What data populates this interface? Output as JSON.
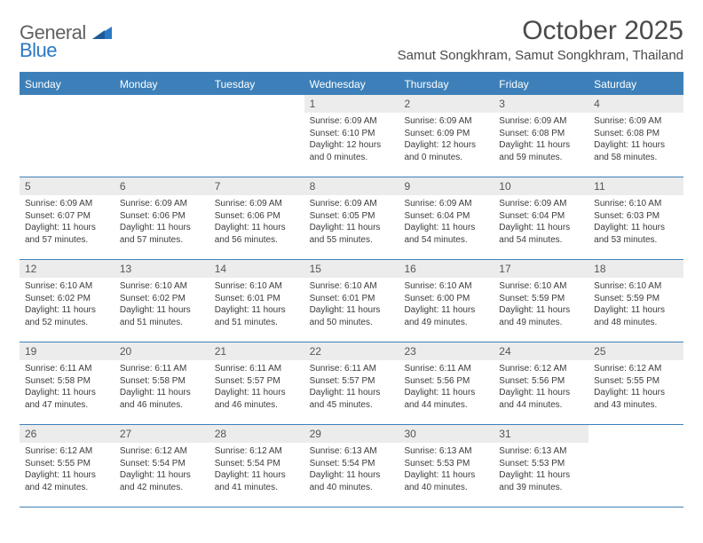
{
  "logo": {
    "word1": "General",
    "word2": "Blue"
  },
  "title": "October 2025",
  "location": "Samut Songkhram, Samut Songkhram, Thailand",
  "colors": {
    "header_bar": "#3d80b9",
    "daynum_bg": "#ececec",
    "logo_grey": "#616161",
    "logo_blue": "#2b78c5",
    "text": "#3b3b3b",
    "rule": "#3d80b9"
  },
  "weekdays": [
    "Sunday",
    "Monday",
    "Tuesday",
    "Wednesday",
    "Thursday",
    "Friday",
    "Saturday"
  ],
  "weeks": [
    [
      {
        "day": "",
        "sunrise": "",
        "sunset": "",
        "daylight1": "",
        "daylight2": ""
      },
      {
        "day": "",
        "sunrise": "",
        "sunset": "",
        "daylight1": "",
        "daylight2": ""
      },
      {
        "day": "",
        "sunrise": "",
        "sunset": "",
        "daylight1": "",
        "daylight2": ""
      },
      {
        "day": "1",
        "sunrise": "Sunrise: 6:09 AM",
        "sunset": "Sunset: 6:10 PM",
        "daylight1": "Daylight: 12 hours",
        "daylight2": "and 0 minutes."
      },
      {
        "day": "2",
        "sunrise": "Sunrise: 6:09 AM",
        "sunset": "Sunset: 6:09 PM",
        "daylight1": "Daylight: 12 hours",
        "daylight2": "and 0 minutes."
      },
      {
        "day": "3",
        "sunrise": "Sunrise: 6:09 AM",
        "sunset": "Sunset: 6:08 PM",
        "daylight1": "Daylight: 11 hours",
        "daylight2": "and 59 minutes."
      },
      {
        "day": "4",
        "sunrise": "Sunrise: 6:09 AM",
        "sunset": "Sunset: 6:08 PM",
        "daylight1": "Daylight: 11 hours",
        "daylight2": "and 58 minutes."
      }
    ],
    [
      {
        "day": "5",
        "sunrise": "Sunrise: 6:09 AM",
        "sunset": "Sunset: 6:07 PM",
        "daylight1": "Daylight: 11 hours",
        "daylight2": "and 57 minutes."
      },
      {
        "day": "6",
        "sunrise": "Sunrise: 6:09 AM",
        "sunset": "Sunset: 6:06 PM",
        "daylight1": "Daylight: 11 hours",
        "daylight2": "and 57 minutes."
      },
      {
        "day": "7",
        "sunrise": "Sunrise: 6:09 AM",
        "sunset": "Sunset: 6:06 PM",
        "daylight1": "Daylight: 11 hours",
        "daylight2": "and 56 minutes."
      },
      {
        "day": "8",
        "sunrise": "Sunrise: 6:09 AM",
        "sunset": "Sunset: 6:05 PM",
        "daylight1": "Daylight: 11 hours",
        "daylight2": "and 55 minutes."
      },
      {
        "day": "9",
        "sunrise": "Sunrise: 6:09 AM",
        "sunset": "Sunset: 6:04 PM",
        "daylight1": "Daylight: 11 hours",
        "daylight2": "and 54 minutes."
      },
      {
        "day": "10",
        "sunrise": "Sunrise: 6:09 AM",
        "sunset": "Sunset: 6:04 PM",
        "daylight1": "Daylight: 11 hours",
        "daylight2": "and 54 minutes."
      },
      {
        "day": "11",
        "sunrise": "Sunrise: 6:10 AM",
        "sunset": "Sunset: 6:03 PM",
        "daylight1": "Daylight: 11 hours",
        "daylight2": "and 53 minutes."
      }
    ],
    [
      {
        "day": "12",
        "sunrise": "Sunrise: 6:10 AM",
        "sunset": "Sunset: 6:02 PM",
        "daylight1": "Daylight: 11 hours",
        "daylight2": "and 52 minutes."
      },
      {
        "day": "13",
        "sunrise": "Sunrise: 6:10 AM",
        "sunset": "Sunset: 6:02 PM",
        "daylight1": "Daylight: 11 hours",
        "daylight2": "and 51 minutes."
      },
      {
        "day": "14",
        "sunrise": "Sunrise: 6:10 AM",
        "sunset": "Sunset: 6:01 PM",
        "daylight1": "Daylight: 11 hours",
        "daylight2": "and 51 minutes."
      },
      {
        "day": "15",
        "sunrise": "Sunrise: 6:10 AM",
        "sunset": "Sunset: 6:01 PM",
        "daylight1": "Daylight: 11 hours",
        "daylight2": "and 50 minutes."
      },
      {
        "day": "16",
        "sunrise": "Sunrise: 6:10 AM",
        "sunset": "Sunset: 6:00 PM",
        "daylight1": "Daylight: 11 hours",
        "daylight2": "and 49 minutes."
      },
      {
        "day": "17",
        "sunrise": "Sunrise: 6:10 AM",
        "sunset": "Sunset: 5:59 PM",
        "daylight1": "Daylight: 11 hours",
        "daylight2": "and 49 minutes."
      },
      {
        "day": "18",
        "sunrise": "Sunrise: 6:10 AM",
        "sunset": "Sunset: 5:59 PM",
        "daylight1": "Daylight: 11 hours",
        "daylight2": "and 48 minutes."
      }
    ],
    [
      {
        "day": "19",
        "sunrise": "Sunrise: 6:11 AM",
        "sunset": "Sunset: 5:58 PM",
        "daylight1": "Daylight: 11 hours",
        "daylight2": "and 47 minutes."
      },
      {
        "day": "20",
        "sunrise": "Sunrise: 6:11 AM",
        "sunset": "Sunset: 5:58 PM",
        "daylight1": "Daylight: 11 hours",
        "daylight2": "and 46 minutes."
      },
      {
        "day": "21",
        "sunrise": "Sunrise: 6:11 AM",
        "sunset": "Sunset: 5:57 PM",
        "daylight1": "Daylight: 11 hours",
        "daylight2": "and 46 minutes."
      },
      {
        "day": "22",
        "sunrise": "Sunrise: 6:11 AM",
        "sunset": "Sunset: 5:57 PM",
        "daylight1": "Daylight: 11 hours",
        "daylight2": "and 45 minutes."
      },
      {
        "day": "23",
        "sunrise": "Sunrise: 6:11 AM",
        "sunset": "Sunset: 5:56 PM",
        "daylight1": "Daylight: 11 hours",
        "daylight2": "and 44 minutes."
      },
      {
        "day": "24",
        "sunrise": "Sunrise: 6:12 AM",
        "sunset": "Sunset: 5:56 PM",
        "daylight1": "Daylight: 11 hours",
        "daylight2": "and 44 minutes."
      },
      {
        "day": "25",
        "sunrise": "Sunrise: 6:12 AM",
        "sunset": "Sunset: 5:55 PM",
        "daylight1": "Daylight: 11 hours",
        "daylight2": "and 43 minutes."
      }
    ],
    [
      {
        "day": "26",
        "sunrise": "Sunrise: 6:12 AM",
        "sunset": "Sunset: 5:55 PM",
        "daylight1": "Daylight: 11 hours",
        "daylight2": "and 42 minutes."
      },
      {
        "day": "27",
        "sunrise": "Sunrise: 6:12 AM",
        "sunset": "Sunset: 5:54 PM",
        "daylight1": "Daylight: 11 hours",
        "daylight2": "and 42 minutes."
      },
      {
        "day": "28",
        "sunrise": "Sunrise: 6:12 AM",
        "sunset": "Sunset: 5:54 PM",
        "daylight1": "Daylight: 11 hours",
        "daylight2": "and 41 minutes."
      },
      {
        "day": "29",
        "sunrise": "Sunrise: 6:13 AM",
        "sunset": "Sunset: 5:54 PM",
        "daylight1": "Daylight: 11 hours",
        "daylight2": "and 40 minutes."
      },
      {
        "day": "30",
        "sunrise": "Sunrise: 6:13 AM",
        "sunset": "Sunset: 5:53 PM",
        "daylight1": "Daylight: 11 hours",
        "daylight2": "and 40 minutes."
      },
      {
        "day": "31",
        "sunrise": "Sunrise: 6:13 AM",
        "sunset": "Sunset: 5:53 PM",
        "daylight1": "Daylight: 11 hours",
        "daylight2": "and 39 minutes."
      },
      {
        "day": "",
        "sunrise": "",
        "sunset": "",
        "daylight1": "",
        "daylight2": ""
      }
    ]
  ]
}
